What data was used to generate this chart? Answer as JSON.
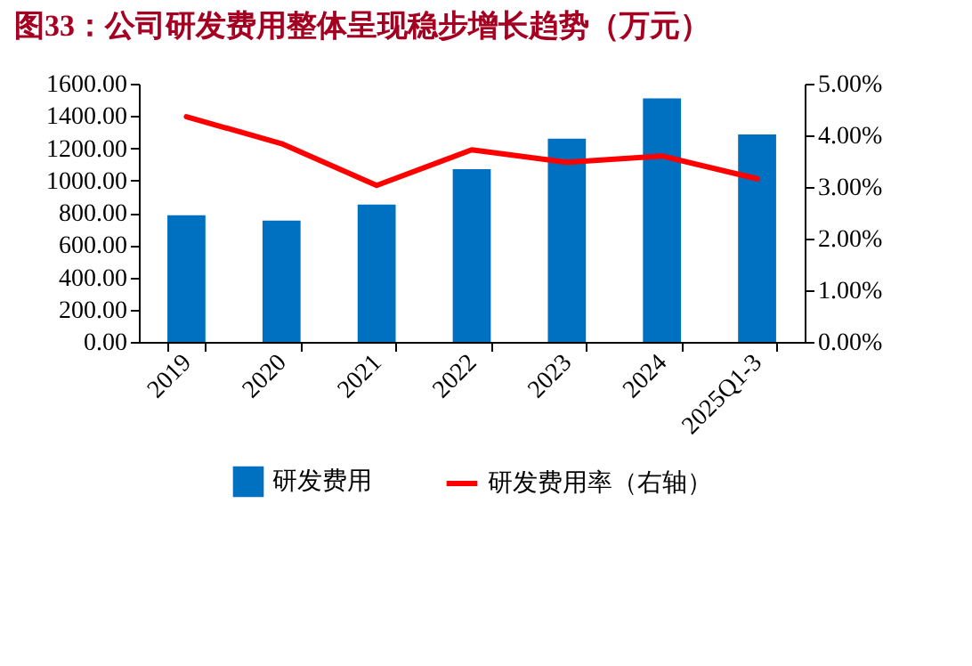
{
  "chart_data": {
    "type": "bar",
    "title": "图33：公司研发费用整体呈现稳步增长趋势（万元）",
    "categories": [
      "2019",
      "2020",
      "2021",
      "2022",
      "2023",
      "2024",
      "2025Q1-3"
    ],
    "series": [
      {
        "name": "研发费用",
        "color": "#0070c0",
        "values": [
          785,
          752,
          851,
          1070,
          1260,
          1509,
          1286
        ]
      },
      {
        "name": "研发费用率（右轴）",
        "type": "line",
        "axis": "y2",
        "color": "#ff0000",
        "values": [
          4.36,
          3.84,
          3.03,
          3.72,
          3.48,
          3.6,
          3.16
        ]
      }
    ],
    "ylim": [
      0,
      1600
    ],
    "yticks": [
      {
        "value": 0,
        "label": "0.00"
      },
      {
        "value": 200,
        "label": "200.00"
      },
      {
        "value": 400,
        "label": "400.00"
      },
      {
        "value": 600,
        "label": "600.00"
      },
      {
        "value": 800,
        "label": "800.00"
      },
      {
        "value": 1000,
        "label": "1000.00"
      },
      {
        "value": 1200,
        "label": "1200.00"
      },
      {
        "value": 1400,
        "label": "1400.00"
      },
      {
        "value": 1600,
        "label": "1600.00"
      }
    ],
    "y2lim": [
      0,
      5
    ],
    "y2ticks": [
      {
        "value": 0,
        "label": "0.00%"
      },
      {
        "value": 1,
        "label": "1.00%"
      },
      {
        "value": 2,
        "label": "2.00%"
      },
      {
        "value": 3,
        "label": "3.00%"
      },
      {
        "value": 4,
        "label": "4.00%"
      },
      {
        "value": 5,
        "label": "5.00%"
      }
    ],
    "grid": false,
    "legend": "bottom",
    "marker": "none",
    "line_style": "solid"
  }
}
